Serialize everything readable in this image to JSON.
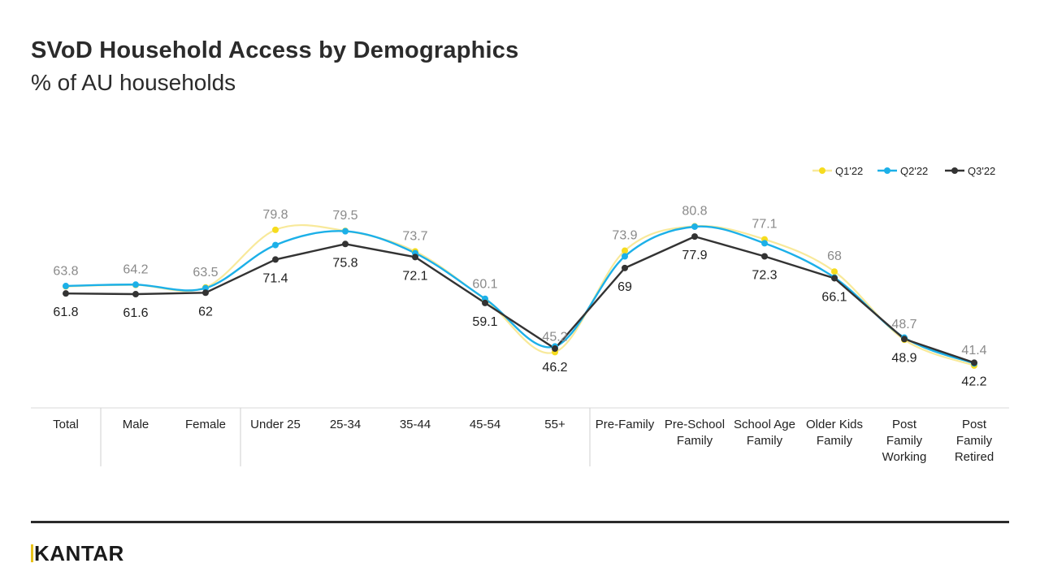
{
  "header": {
    "title": "SVoD Household Access by Demographics",
    "subtitle": "% of AU households"
  },
  "footer": {
    "logo_text": "KANTAR"
  },
  "chart_data": {
    "type": "line",
    "title": "SVoD Household Access by Demographics",
    "subtitle": "% of AU households",
    "xlabel": "",
    "ylabel": "",
    "ylim": [
      30,
      90
    ],
    "grid": false,
    "legend_position": "top-right",
    "categories": [
      [
        "Total"
      ],
      [
        "Male"
      ],
      [
        "Female"
      ],
      [
        "Under 25"
      ],
      [
        "25-34"
      ],
      [
        "35-44"
      ],
      [
        "45-54"
      ],
      [
        "55+"
      ],
      [
        "Pre-Family"
      ],
      [
        "Pre-School",
        "Family"
      ],
      [
        "School Age",
        "Family"
      ],
      [
        "Older Kids",
        "Family"
      ],
      [
        "Post",
        "Family",
        "Working"
      ],
      [
        "Post",
        "Family",
        "Retired"
      ]
    ],
    "group_dividers_after": [
      0,
      2,
      7
    ],
    "series": [
      {
        "name": "Q1'22",
        "color": "#f6dc1e",
        "line_color": "#f8e99a",
        "values": [
          63.8,
          64.2,
          63.5,
          79.8,
          79.5,
          73.7,
          60.1,
          45.2,
          73.9,
          80.8,
          77.1,
          68,
          48.7,
          41.4
        ],
        "labels_visible": [
          true,
          true,
          true,
          true,
          true,
          true,
          true,
          true,
          true,
          true,
          true,
          true,
          true,
          true
        ]
      },
      {
        "name": "Q2'22",
        "color": "#1cb0e8",
        "line_color": "#1cb0e8",
        "values": [
          63.9,
          64.3,
          63.3,
          75.5,
          79.4,
          73.2,
          60.3,
          46.8,
          72.3,
          80.7,
          76.0,
          66.3,
          49.3,
          42.0
        ],
        "labels_visible": [
          false,
          false,
          false,
          false,
          false,
          false,
          false,
          false,
          false,
          false,
          false,
          false,
          false,
          false
        ]
      },
      {
        "name": "Q3'22",
        "color": "#333333",
        "line_color": "#333333",
        "values": [
          61.8,
          61.6,
          62,
          71.4,
          75.8,
          72.1,
          59.1,
          46.2,
          69,
          77.9,
          72.3,
          66.1,
          48.9,
          42.2
        ],
        "labels_visible": [
          true,
          true,
          true,
          true,
          true,
          true,
          true,
          true,
          true,
          true,
          true,
          true,
          true,
          true
        ]
      }
    ]
  }
}
